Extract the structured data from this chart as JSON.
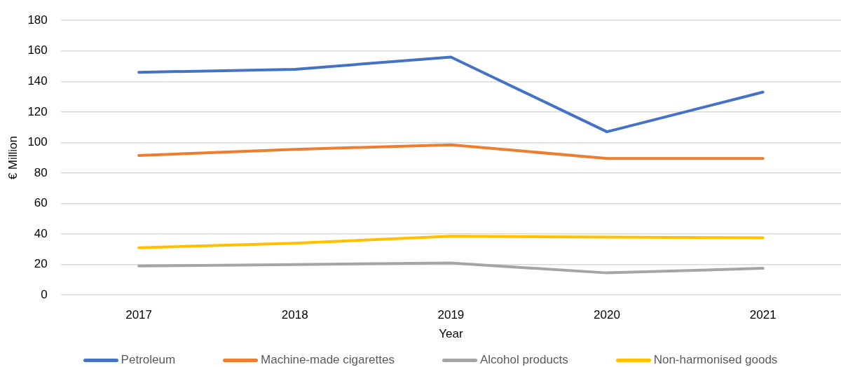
{
  "chart_data": {
    "type": "line",
    "xlabel": "Year",
    "ylabel": "€ Million",
    "categories": [
      "2017",
      "2018",
      "2019",
      "2020",
      "2021"
    ],
    "series": [
      {
        "name": "Petroleum",
        "color": "#4472c4",
        "values": [
          146,
          148,
          156,
          107,
          133
        ]
      },
      {
        "name": "Machine-made cigarettes",
        "color": "#ed7d31",
        "values": [
          91.5,
          95.5,
          98.5,
          89.5,
          89.5
        ]
      },
      {
        "name": "Alcohol products",
        "color": "#a5a5a5",
        "values": [
          19,
          20,
          21,
          14.5,
          17.5
        ]
      },
      {
        "name": "Non-harmonised goods",
        "color": "#ffc000",
        "values": [
          31,
          34,
          38.5,
          38,
          37.5
        ]
      }
    ],
    "ylim": [
      0,
      180
    ],
    "yticks": [
      0,
      20,
      40,
      60,
      80,
      100,
      120,
      140,
      160,
      180
    ],
    "grid": "y",
    "legend": "bottom",
    "marker": "none",
    "line_style": "solid"
  }
}
